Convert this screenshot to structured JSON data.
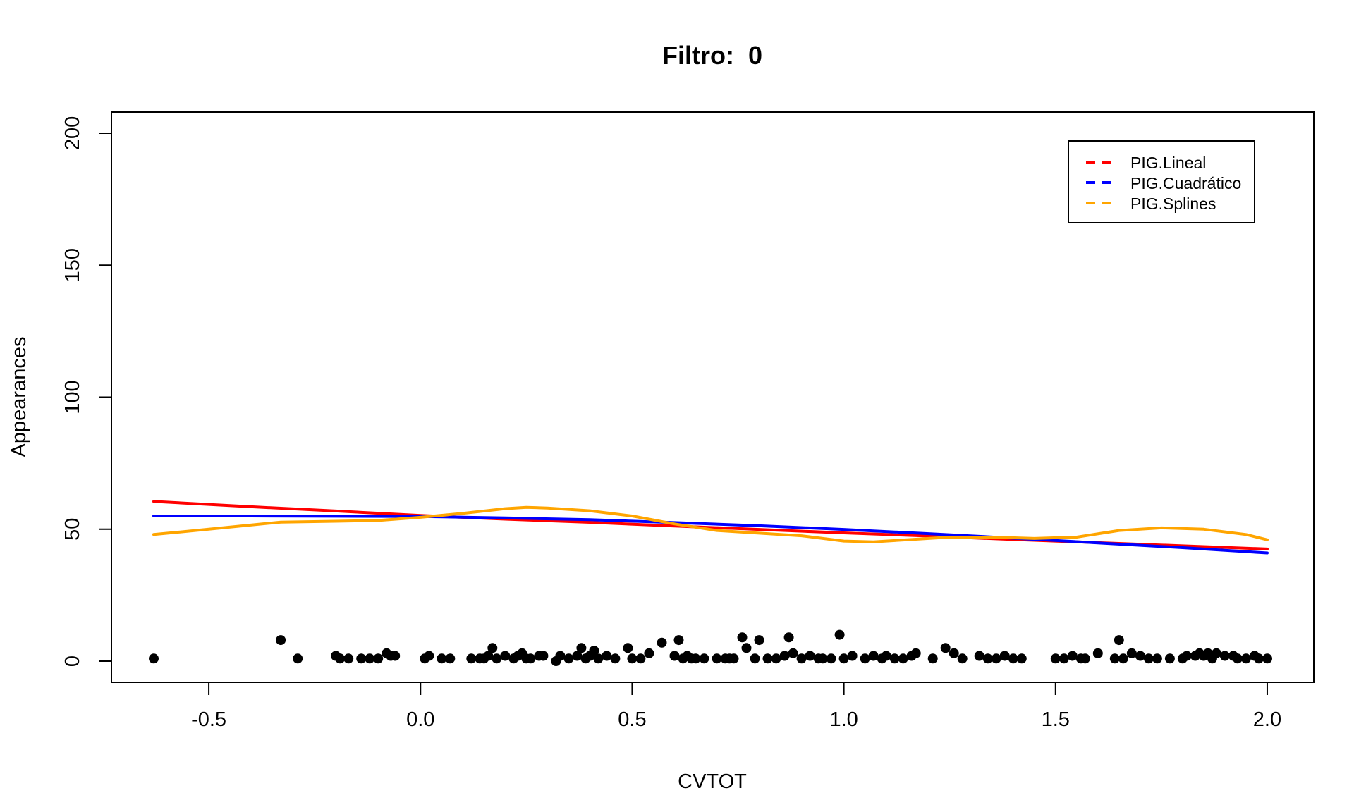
{
  "chart_data": {
    "type": "scatter",
    "title": "Filtro:  0",
    "xlabel": "CVTOT",
    "ylabel": "Appearances",
    "xlim": [
      -0.73,
      2.11
    ],
    "ylim": [
      -8,
      208
    ],
    "xticks": [
      -0.5,
      0.0,
      0.5,
      1.0,
      1.5,
      2.0
    ],
    "xtick_labels": [
      "-0.5",
      "0.0",
      "0.5",
      "1.0",
      "1.5",
      "2.0"
    ],
    "yticks": [
      0,
      50,
      100,
      150,
      200
    ],
    "ytick_labels": [
      "0",
      "50",
      "100",
      "150",
      "200"
    ],
    "grid": false,
    "legend_position": "top-right",
    "points": {
      "x": [
        -0.63,
        -0.33,
        -0.29,
        -0.2,
        -0.19,
        -0.17,
        -0.14,
        -0.12,
        -0.1,
        -0.08,
        -0.07,
        -0.06,
        0.01,
        0.02,
        0.05,
        0.07,
        0.12,
        0.14,
        0.15,
        0.16,
        0.17,
        0.18,
        0.2,
        0.22,
        0.23,
        0.24,
        0.25,
        0.26,
        0.28,
        0.29,
        0.32,
        0.33,
        0.35,
        0.37,
        0.38,
        0.39,
        0.4,
        0.41,
        0.42,
        0.44,
        0.46,
        0.49,
        0.5,
        0.52,
        0.54,
        0.57,
        0.6,
        0.61,
        0.62,
        0.63,
        0.64,
        0.65,
        0.67,
        0.7,
        0.72,
        0.73,
        0.74,
        0.76,
        0.77,
        0.79,
        0.8,
        0.82,
        0.84,
        0.86,
        0.87,
        0.88,
        0.9,
        0.92,
        0.94,
        0.95,
        0.97,
        0.99,
        1.0,
        1.02,
        1.05,
        1.07,
        1.09,
        1.1,
        1.12,
        1.14,
        1.16,
        1.17,
        1.21,
        1.24,
        1.26,
        1.28,
        1.32,
        1.34,
        1.36,
        1.38,
        1.4,
        1.42,
        1.5,
        1.52,
        1.54,
        1.56,
        1.57,
        1.6,
        1.64,
        1.65,
        1.66,
        1.68,
        1.7,
        1.72,
        1.74,
        1.77,
        1.8,
        1.81,
        1.83,
        1.84,
        1.85,
        1.86,
        1.87,
        1.88,
        1.9,
        1.92,
        1.93,
        1.95,
        1.97,
        1.98,
        2.0
      ],
      "y": [
        1,
        8,
        1,
        2,
        1,
        1,
        1,
        1,
        1,
        3,
        2,
        2,
        1,
        2,
        1,
        1,
        1,
        1,
        1,
        2,
        5,
        1,
        2,
        1,
        2,
        3,
        1,
        1,
        2,
        2,
        0,
        2,
        1,
        2,
        5,
        1,
        2,
        4,
        1,
        2,
        1,
        5,
        1,
        1,
        3,
        7,
        2,
        8,
        1,
        2,
        1,
        1,
        1,
        1,
        1,
        1,
        1,
        9,
        5,
        1,
        8,
        1,
        1,
        2,
        9,
        3,
        1,
        2,
        1,
        1,
        1,
        10,
        1,
        2,
        1,
        2,
        1,
        2,
        1,
        1,
        2,
        3,
        1,
        5,
        3,
        1,
        2,
        1,
        1,
        2,
        1,
        1,
        1,
        1,
        2,
        1,
        1,
        3,
        1,
        8,
        1,
        3,
        2,
        1,
        1,
        1,
        1,
        2,
        2,
        3,
        2,
        3,
        1,
        3,
        2,
        2,
        1,
        1,
        2,
        1,
        1
      ]
    },
    "series": [
      {
        "name": "PIG.Lineal",
        "color": "#ff0000",
        "x": [
          -0.63,
          -0.4,
          -0.2,
          0.0,
          0.2,
          0.4,
          0.6,
          0.8,
          1.0,
          1.2,
          1.4,
          1.6,
          1.8,
          2.0
        ],
        "y": [
          60.5,
          58.5,
          56.9,
          55.2,
          53.8,
          52.6,
          51.2,
          49.9,
          48.6,
          47.4,
          46.1,
          44.9,
          43.7,
          42.5
        ]
      },
      {
        "name": "PIG.Cuadrático",
        "color": "#0000ff",
        "x": [
          -0.63,
          -0.4,
          -0.2,
          0.0,
          0.2,
          0.4,
          0.6,
          0.8,
          1.0,
          1.2,
          1.4,
          1.6,
          1.8,
          2.0
        ],
        "y": [
          55.0,
          55.0,
          54.9,
          54.8,
          54.3,
          53.6,
          52.5,
          51.3,
          49.9,
          48.3,
          46.6,
          44.8,
          43.0,
          41.0
        ]
      },
      {
        "name": "PIG.Splines",
        "color": "#ffa500",
        "x": [
          -0.63,
          -0.5,
          -0.33,
          -0.2,
          -0.1,
          0.0,
          0.1,
          0.2,
          0.25,
          0.3,
          0.4,
          0.5,
          0.6,
          0.7,
          0.8,
          0.9,
          1.0,
          1.07,
          1.15,
          1.25,
          1.35,
          1.45,
          1.55,
          1.65,
          1.75,
          1.85,
          1.95,
          2.0
        ],
        "y": [
          48.0,
          50.0,
          52.7,
          53.0,
          53.3,
          54.5,
          56.0,
          57.8,
          58.3,
          58.0,
          57.0,
          55.0,
          52.0,
          49.5,
          48.5,
          47.5,
          45.5,
          45.2,
          46.0,
          47.0,
          47.0,
          46.5,
          47.0,
          49.5,
          50.5,
          50.0,
          48.0,
          46.0
        ]
      }
    ]
  }
}
